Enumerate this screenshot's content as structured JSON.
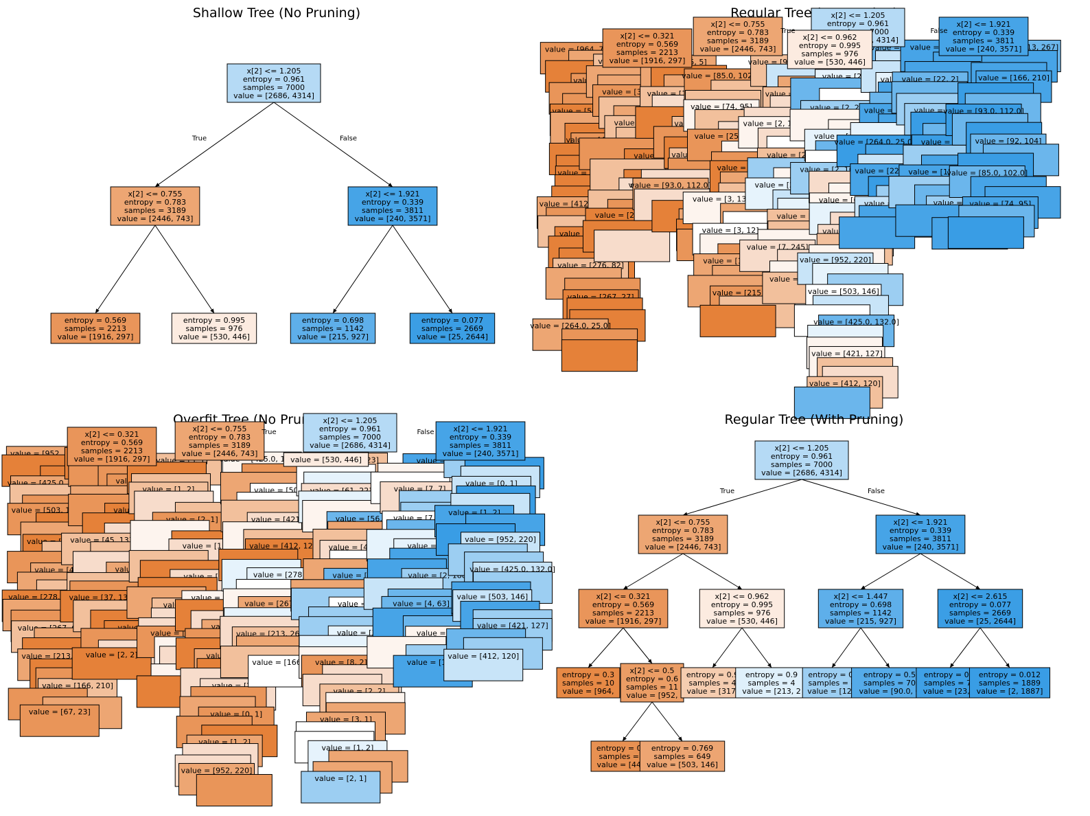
{
  "figure": {
    "panels": [
      {
        "title": "Shallow Tree (No Pruning)",
        "nodes": [
          {
            "id": "n0",
            "lines": [
              "x[2] <= 1.205",
              "entropy = 0.961",
              "samples = 7000",
              "value = [2686, 4314]"
            ],
            "fill": "#b5daf5"
          },
          {
            "id": "n1",
            "lines": [
              "x[2] <= 0.755",
              "entropy = 0.783",
              "samples = 3189",
              "value = [2446, 743]"
            ],
            "fill": "#eda673"
          },
          {
            "id": "n2",
            "lines": [
              "x[2] <= 1.921",
              "entropy = 0.339",
              "samples = 3811",
              "value = [240, 3571]"
            ],
            "fill": "#46a4e7"
          },
          {
            "id": "n3",
            "lines": [
              "entropy = 0.569",
              "samples = 2213",
              "value = [1916, 297]"
            ],
            "fill": "#e9955a"
          },
          {
            "id": "n4",
            "lines": [
              "entropy = 0.995",
              "samples = 976",
              "value = [530, 446]"
            ],
            "fill": "#fcebe0"
          },
          {
            "id": "n5",
            "lines": [
              "entropy = 0.698",
              "samples = 1142",
              "value = [215, 927]"
            ],
            "fill": "#5eafea"
          },
          {
            "id": "n6",
            "lines": [
              "entropy = 0.077",
              "samples = 2669",
              "value = [25, 2644]"
            ],
            "fill": "#3b9ee5"
          }
        ],
        "edges": [
          {
            "from": "n0",
            "to": "n1",
            "label": "True"
          },
          {
            "from": "n0",
            "to": "n2",
            "label": "False"
          },
          {
            "from": "n1",
            "to": "n3",
            "label": ""
          },
          {
            "from": "n1",
            "to": "n4",
            "label": ""
          },
          {
            "from": "n2",
            "to": "n5",
            "label": ""
          },
          {
            "from": "n2",
            "to": "n6",
            "label": ""
          }
        ]
      },
      {
        "title": "Regular Tree (No Pruning)",
        "top_nodes": [
          {
            "id": "r0",
            "lines": [
              "x[2] <= 1.205",
              "entropy = 0.961",
              "samples = 7000",
              "value = [2686, 4314]"
            ],
            "fill": "#b5daf5"
          },
          {
            "id": "r1",
            "lines": [
              "x[2] <= 0.755",
              "entropy = 0.783",
              "samples = 3189",
              "value = [2446, 743]"
            ],
            "fill": "#eda673"
          },
          {
            "id": "r2",
            "lines": [
              "x[2] <= 1.921",
              "entropy = 0.339",
              "samples = 3811",
              "value = [240, 3571]"
            ],
            "fill": "#46a4e7"
          },
          {
            "id": "r3",
            "lines": [
              "x[2] <= 0.321",
              "entropy = 0.569",
              "samples = 2213",
              "value = [1916, 297]"
            ],
            "fill": "#e9955a"
          },
          {
            "id": "r4",
            "lines": [
              "x[2] <= 0.962",
              "entropy = 0.995",
              "samples = 976",
              "value = [530, 446]"
            ],
            "fill": "#fcebe0"
          }
        ],
        "edge_labels": [
          "True",
          "False"
        ],
        "clutter_values": [
          "value = [964, 77]",
          "value = [952, 220]",
          "value = [503, 146]",
          "value = [425.0, 132.0]",
          "value = [421, 127]",
          "value = [412, 120]",
          "value = [278, 84]",
          "value = [276, 82]",
          "value = [267, 27]",
          "value = [264.0, 25.0]",
          "value = [228, 25]",
          "value = [30, 8]",
          "value = [28, 5]",
          "value = [22, 2]",
          "value = [15, 2]",
          "value = [27, 5]",
          "value = [15, 5]",
          "value = [16, 10]",
          "value = [213, 267]",
          "value = [166, 210]",
          "value = [93.0, 112.0]",
          "value = [92, 104]",
          "value = [85.0, 102.0]",
          "value = [74, 95]",
          "value = [25, 43]",
          "value = [19, 37]",
          "value = [3, 13]",
          "value = [3, 12]",
          "value = [13, 8]",
          "value = [215, 927]",
          "value = [90.0, 636.0]",
          "value = [25, 2644]",
          "value = [2, 1887]",
          "value = [2, 72]",
          "value = [2, 33]",
          "value = [1, 15]",
          "value = [7, 245]",
          "value = [7, 182]",
          "value = [2, 110]",
          "value = [2, 27]",
          "value = [4, 11]",
          "value = [2, 16]",
          "value = [6, 24]"
        ]
      },
      {
        "title": "Overfit Tree (No Pruning)",
        "top_nodes": [
          {
            "id": "o0",
            "lines": [
              "x[2] <= 1.205",
              "entropy = 0.961",
              "samples = 7000",
              "value = [2686, 4314]"
            ],
            "fill": "#b5daf5"
          },
          {
            "id": "o1",
            "lines": [
              "x[2] <= 0.755",
              "entropy = 0.783",
              "samples = 3189",
              "value = [2446, 743]"
            ],
            "fill": "#eda673"
          },
          {
            "id": "o2",
            "lines": [
              "x[2] <= 1.921",
              "entropy = 0.339",
              "samples = 3811",
              "value = [240, 3571]"
            ],
            "fill": "#46a4e7"
          },
          {
            "id": "o3",
            "lines": [
              "x[2] <= 0.321",
              "entropy = 0.569",
              "samples = 2213",
              "value = [1916, 297]"
            ],
            "fill": "#e9955a"
          },
          {
            "id": "o4",
            "lines": [
              "value = [530, 446]"
            ],
            "fill": "#fcebe0"
          }
        ],
        "edge_labels": [
          "True",
          "False"
        ],
        "clutter_values": [
          "value = [952, 220]",
          "value = [425.0, 132.0]",
          "value = [503, 146]",
          "value = [421, 127]",
          "value = [412, 120]",
          "value = [278, 82]",
          "value = [267, 67]",
          "value = [213, 267]",
          "value = [166, 210]",
          "value = [67, 23]",
          "value = [61, 22]",
          "value = [56, 20]",
          "value = [49, 15]",
          "value = [45, 13]",
          "value = [41, 13]",
          "value = [37, 13]",
          "value = [8, 2]",
          "value = [2, 2]",
          "value = [3, 1]",
          "value = [1, 2]",
          "value = [2, 1]",
          "value = [1, 1]",
          "value = [7, 7]",
          "value = [7, 10]",
          "value = [2, 4]",
          "value = [2, 1887]",
          "value = [4, 63]",
          "value = [2, 13]",
          "value = [1, 9]",
          "value = [2, 9]",
          "value = [0, 1]",
          "value = [1, 2]"
        ]
      },
      {
        "title": "Regular Tree (With Pruning)",
        "nodes": [
          {
            "id": "p0",
            "lines": [
              "x[2] <= 1.205",
              "entropy = 0.961",
              "samples = 7000",
              "value = [2686, 4314]"
            ],
            "fill": "#b5daf5"
          },
          {
            "id": "p1",
            "lines": [
              "x[2] <= 0.755",
              "entropy = 0.783",
              "samples = 3189",
              "value = [2446, 743]"
            ],
            "fill": "#eda673"
          },
          {
            "id": "p2",
            "lines": [
              "x[2] <= 1.921",
              "entropy = 0.339",
              "samples = 3811",
              "value = [240, 3571]"
            ],
            "fill": "#46a4e7"
          },
          {
            "id": "p3",
            "lines": [
              "x[2] <= 0.321",
              "entropy = 0.569",
              "samples = 2213",
              "value = [1916, 297]"
            ],
            "fill": "#e9955a"
          },
          {
            "id": "p4",
            "lines": [
              "x[2] <= 0.962",
              "entropy = 0.995",
              "samples = 976",
              "value = [530, 446]"
            ],
            "fill": "#fcebe0"
          },
          {
            "id": "p5",
            "lines": [
              "x[2] <= 1.447",
              "entropy = 0.698",
              "samples = 1142",
              "value = [215, 927]"
            ],
            "fill": "#5eafea"
          },
          {
            "id": "p6",
            "lines": [
              "x[2] <= 2.615",
              "entropy = 0.077",
              "samples = 2669",
              "value = [25, 2644]"
            ],
            "fill": "#3b9ee5"
          },
          {
            "id": "p7",
            "lines": [
              "entropy = 0.3",
              "samples = 10",
              "value = [964,"
            ],
            "fill": "#e78945"
          },
          {
            "id": "p8",
            "lines": [
              "x[2] <= 0.5",
              "entropy = 0.6",
              "samples = 11",
              "value = [952,"
            ],
            "fill": "#eb9d65"
          },
          {
            "id": "p9",
            "lines": [
              "entropy = 0.9",
              "samples = 4",
              "value = [317,"
            ],
            "fill": "#f5cdb0"
          },
          {
            "id": "p10",
            "lines": [
              "entropy = 0.9",
              "samples = 4",
              "value = [213, 2"
            ],
            "fill": "#dff0fb"
          },
          {
            "id": "p11",
            "lines": [
              "entropy = 0.",
              "samples = 4",
              "value = [125"
            ],
            "fill": "#9ccef2"
          },
          {
            "id": "p12",
            "lines": [
              "entropy = 0.5",
              "samples = 70",
              "value = [90.0, 6"
            ],
            "fill": "#55abe9"
          },
          {
            "id": "p13",
            "lines": [
              "entropy = 0.1",
              "samples = 78",
              "value = [23, 7"
            ],
            "fill": "#3fa0e6"
          },
          {
            "id": "p14",
            "lines": [
              "entropy = 0.012",
              "samples = 1889",
              "value = [2, 1887]"
            ],
            "fill": "#399de5"
          },
          {
            "id": "p15",
            "lines": [
              "entropy = 0.5",
              "samples = 5",
              "value = [449,"
            ],
            "fill": "#e89152"
          },
          {
            "id": "p16",
            "lines": [
              "entropy = 0.769",
              "samples = 649",
              "value = [503, 146]"
            ],
            "fill": "#eda572"
          }
        ],
        "edges": [
          {
            "from": "p0",
            "to": "p1",
            "label": "True"
          },
          {
            "from": "p0",
            "to": "p2",
            "label": "False"
          },
          {
            "from": "p1",
            "to": "p3",
            "label": ""
          },
          {
            "from": "p1",
            "to": "p4",
            "label": ""
          },
          {
            "from": "p2",
            "to": "p5",
            "label": ""
          },
          {
            "from": "p2",
            "to": "p6",
            "label": ""
          },
          {
            "from": "p3",
            "to": "p7",
            "label": ""
          },
          {
            "from": "p3",
            "to": "p8",
            "label": ""
          },
          {
            "from": "p4",
            "to": "p9",
            "label": ""
          },
          {
            "from": "p4",
            "to": "p10",
            "label": ""
          },
          {
            "from": "p5",
            "to": "p11",
            "label": ""
          },
          {
            "from": "p5",
            "to": "p12",
            "label": ""
          },
          {
            "from": "p6",
            "to": "p13",
            "label": ""
          },
          {
            "from": "p6",
            "to": "p14",
            "label": ""
          },
          {
            "from": "p8",
            "to": "p15",
            "label": ""
          },
          {
            "from": "p8",
            "to": "p16",
            "label": ""
          }
        ]
      }
    ]
  }
}
